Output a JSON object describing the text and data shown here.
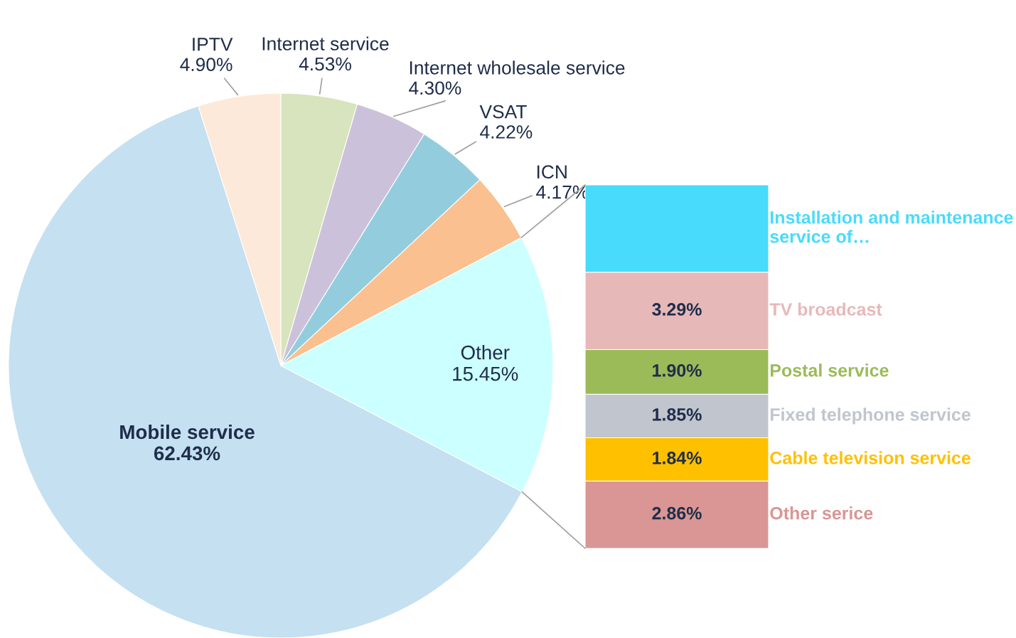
{
  "chart_data": [
    {
      "type": "pie",
      "categories": [
        "Internet service",
        "Internet wholesale service",
        "VSAT",
        "ICN",
        "Other",
        "Mobile service",
        "IPTV"
      ],
      "values": [
        4.53,
        4.3,
        4.22,
        4.17,
        15.45,
        62.43,
        4.9
      ],
      "value_labels": [
        "4.53%",
        "4.30%",
        "4.22%",
        "4.17%",
        "15.45%",
        "62.43%",
        "4.90%"
      ],
      "colors": [
        "#d7e4bd",
        "#ccc1da",
        "#93cddd",
        "#fac090",
        "#ccffff",
        "#c5e0f1",
        "#fde9d9"
      ]
    },
    {
      "type": "bar",
      "stacked": true,
      "categories": [
        null
      ],
      "tick_labels": false,
      "series": [
        {
          "name": "Other serice",
          "color": "#d99694",
          "values": [
            2.86
          ],
          "value_labels": [
            "2.86%"
          ]
        },
        {
          "name": "Cable television service",
          "color": "#ffc000",
          "values": [
            1.84
          ],
          "value_labels": [
            "1.84%"
          ]
        },
        {
          "name": "Fixed telephone service",
          "color": "#c0c5ce",
          "values": [
            1.85
          ],
          "value_labels": [
            "1.85%"
          ]
        },
        {
          "name": "Postal service",
          "color": "#9bbb59",
          "values": [
            1.9
          ],
          "value_labels": [
            "1.90%"
          ]
        },
        {
          "name": "TV broadcast",
          "color": "#e6b9b8",
          "values": [
            3.29
          ],
          "value_labels": [
            "3.29%"
          ]
        },
        {
          "name": "Installation and maintenance service of…",
          "color": "#48dbfb",
          "values": [
            3.71
          ],
          "value_labels": [
            null
          ]
        }
      ]
    }
  ]
}
